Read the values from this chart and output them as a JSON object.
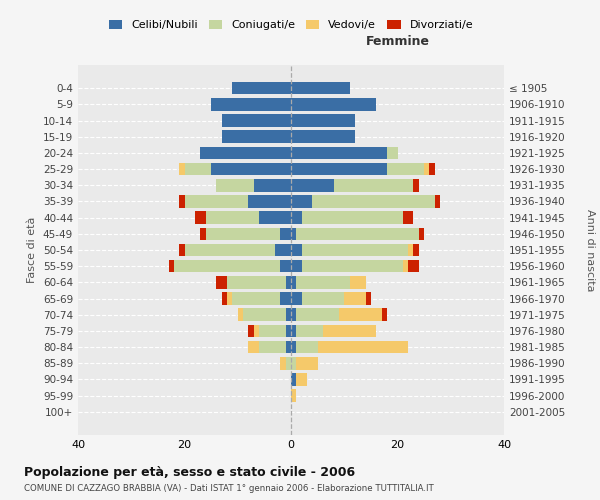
{
  "age_groups": [
    "0-4",
    "5-9",
    "10-14",
    "15-19",
    "20-24",
    "25-29",
    "30-34",
    "35-39",
    "40-44",
    "45-49",
    "50-54",
    "55-59",
    "60-64",
    "65-69",
    "70-74",
    "75-79",
    "80-84",
    "85-89",
    "90-94",
    "95-99",
    "100+"
  ],
  "birth_years": [
    "2001-2005",
    "1996-2000",
    "1991-1995",
    "1986-1990",
    "1981-1985",
    "1976-1980",
    "1971-1975",
    "1966-1970",
    "1961-1965",
    "1956-1960",
    "1951-1955",
    "1946-1950",
    "1941-1945",
    "1936-1940",
    "1931-1935",
    "1926-1930",
    "1921-1925",
    "1916-1920",
    "1911-1915",
    "1906-1910",
    "≤ 1905"
  ],
  "males": {
    "celibi": [
      11,
      15,
      13,
      13,
      17,
      15,
      7,
      8,
      6,
      2,
      3,
      2,
      1,
      2,
      1,
      1,
      1,
      0,
      0,
      0,
      0
    ],
    "coniugati": [
      0,
      0,
      0,
      0,
      0,
      5,
      7,
      12,
      10,
      14,
      17,
      20,
      11,
      9,
      8,
      5,
      5,
      1,
      0,
      0,
      0
    ],
    "vedovi": [
      0,
      0,
      0,
      0,
      0,
      1,
      0,
      0,
      0,
      0,
      0,
      0,
      0,
      1,
      1,
      1,
      2,
      1,
      0,
      0,
      0
    ],
    "divorziati": [
      0,
      0,
      0,
      0,
      0,
      0,
      0,
      1,
      2,
      1,
      1,
      1,
      2,
      1,
      0,
      1,
      0,
      0,
      0,
      0,
      0
    ]
  },
  "females": {
    "nubili": [
      11,
      16,
      12,
      12,
      18,
      18,
      8,
      4,
      2,
      1,
      2,
      2,
      1,
      2,
      1,
      1,
      1,
      0,
      1,
      0,
      0
    ],
    "coniugate": [
      0,
      0,
      0,
      0,
      2,
      7,
      15,
      23,
      19,
      23,
      20,
      19,
      10,
      8,
      8,
      5,
      4,
      1,
      0,
      0,
      0
    ],
    "vedove": [
      0,
      0,
      0,
      0,
      0,
      1,
      0,
      0,
      0,
      0,
      1,
      1,
      3,
      4,
      8,
      10,
      17,
      4,
      2,
      1,
      0
    ],
    "divorziate": [
      0,
      0,
      0,
      0,
      0,
      1,
      1,
      1,
      2,
      1,
      1,
      2,
      0,
      1,
      1,
      0,
      0,
      0,
      0,
      0,
      0
    ]
  },
  "colors": {
    "celibi": "#3a6ea5",
    "coniugati": "#c5d6a0",
    "vedovi": "#f5c96a",
    "divorziati": "#cc2200"
  },
  "xlim": 40,
  "title": "Popolazione per età, sesso e stato civile - 2006",
  "subtitle": "COMUNE DI CAZZAGO BRABBIA (VA) - Dati ISTAT 1° gennaio 2006 - Elaborazione TUTTITALIA.IT",
  "ylabel_left": "Fasce di età",
  "ylabel_right": "Anni di nascita",
  "xlabel_right": "Femmine",
  "legend_labels": [
    "Celibi/Nubili",
    "Coniugati/e",
    "Vedovi/e",
    "Divorziati/e"
  ],
  "bg_color": "#f5f5f5",
  "plot_bg_color": "#eaeaea"
}
